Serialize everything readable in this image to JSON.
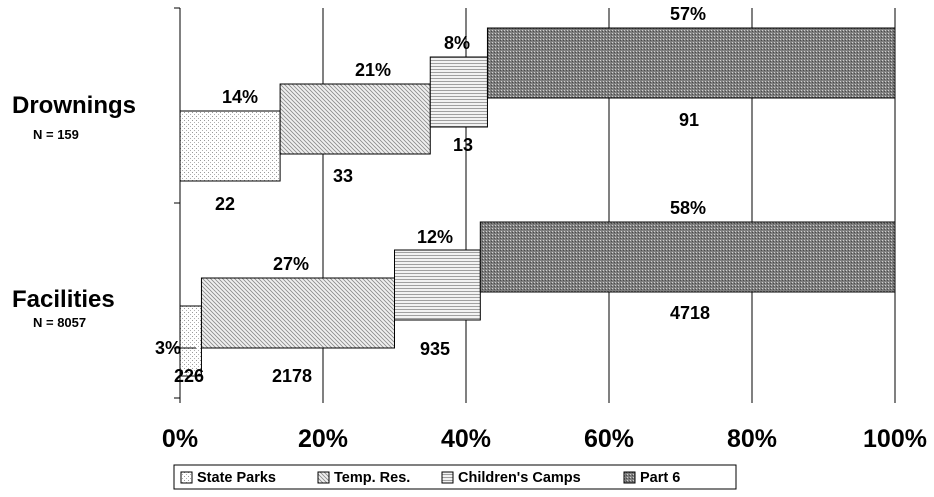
{
  "chart_data": {
    "type": "bar",
    "orientation": "horizontal",
    "stacked": true,
    "categories": [
      "Drownings",
      "Facilities"
    ],
    "category_subtitles": [
      "N = 159",
      "N = 8057"
    ],
    "series": [
      {
        "name": "State Parks",
        "values": [
          14,
          3
        ],
        "percent_labels": [
          "14%",
          "3%"
        ],
        "count_labels": [
          "22",
          "226"
        ],
        "pattern": "dots-light"
      },
      {
        "name": "Temp. Res.",
        "values": [
          21,
          27
        ],
        "percent_labels": [
          "21%",
          "27%"
        ],
        "count_labels": [
          "33",
          "2178"
        ],
        "pattern": "diag"
      },
      {
        "name": "Children's Camps",
        "values": [
          8,
          12
        ],
        "percent_labels": [
          "8%",
          "12%"
        ],
        "count_labels": [
          "13",
          "935"
        ],
        "pattern": "hlines"
      },
      {
        "name": "Part 6",
        "values": [
          57,
          58
        ],
        "percent_labels": [
          "57%",
          "58%"
        ],
        "count_labels": [
          "91",
          "4718"
        ],
        "pattern": "dense"
      }
    ],
    "xlim": [
      0,
      100
    ],
    "x_ticks": [
      "0%",
      "20%",
      "40%",
      "60%",
      "80%",
      "100%"
    ],
    "grid": true,
    "legend_position": "bottom"
  }
}
